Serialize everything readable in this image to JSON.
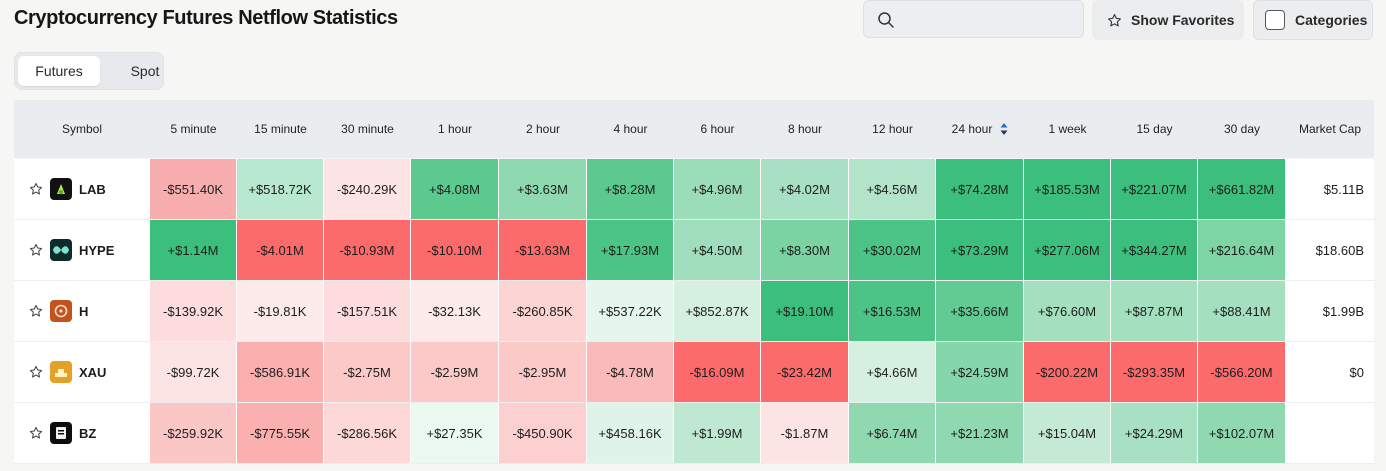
{
  "header": {
    "title": "Cryptocurrency Futures Netflow Statistics",
    "search_placeholder": "",
    "show_favorites_label": "Show Favorites",
    "categories_label": "Categories"
  },
  "tabs": {
    "futures": "Futures",
    "spot": "Spot",
    "active": "Futures"
  },
  "table": {
    "columns": [
      "Symbol",
      "5 minute",
      "15 minute",
      "30 minute",
      "1 hour",
      "2 hour",
      "4 hour",
      "6 hour",
      "8 hour",
      "12 hour",
      "24 hour",
      "1 week",
      "15 day",
      "30 day",
      "Market Cap"
    ],
    "sorted_column": "24 hour",
    "rows": [
      {
        "symbol": "LAB",
        "icon": "lab-coin-icon",
        "market_cap": "$5.11B",
        "values": [
          "-$551.40K",
          "+$518.72K",
          "-$240.29K",
          "+$4.08M",
          "+$3.63M",
          "+$8.28M",
          "+$4.96M",
          "+$4.02M",
          "+$4.56M",
          "+$74.28M",
          "+$185.53M",
          "+$221.07M",
          "+$661.82M"
        ],
        "colors": [
          "#f8aeae",
          "#b8e8cf",
          "#fde4e4",
          "#5cc98f",
          "#8ed9b0",
          "#5cc98f",
          "#9bdcb9",
          "#a7e0c2",
          "#b3e4c9",
          "#3cbf7c",
          "#3cbf7c",
          "#3cbf7c",
          "#3cbf7c"
        ]
      },
      {
        "symbol": "HYPE",
        "icon": "hype-coin-icon",
        "market_cap": "$18.60B",
        "values": [
          "+$1.14M",
          "-$4.01M",
          "-$10.93M",
          "-$10.10M",
          "-$13.63M",
          "+$17.93M",
          "+$4.50M",
          "+$8.30M",
          "+$30.02M",
          "+$73.29M",
          "+$277.06M",
          "+$344.27M",
          "+$216.64M"
        ],
        "colors": [
          "#3cbf7c",
          "#fb6b6b",
          "#fb6b6b",
          "#fb6b6b",
          "#fb6b6b",
          "#4cc486",
          "#a0ddbc",
          "#7bd2a3",
          "#4cc486",
          "#3cbf7c",
          "#3cbf7c",
          "#3cbf7c",
          "#7dd4a5"
        ]
      },
      {
        "symbol": "H",
        "icon": "h-coin-icon",
        "market_cap": "$1.99B",
        "values": [
          "-$139.92K",
          "-$19.81K",
          "-$157.51K",
          "-$32.13K",
          "-$260.85K",
          "+$537.22K",
          "+$852.87K",
          "+$19.10M",
          "+$16.53M",
          "+$35.66M",
          "+$76.60M",
          "+$87.87M",
          "+$88.41M"
        ],
        "colors": [
          "#fcdcdc",
          "#fdeaea",
          "#fcdcdc",
          "#fdeaea",
          "#fcd4d4",
          "#e5f6ec",
          "#d5f0e1",
          "#3cbf7c",
          "#4cc486",
          "#62cb94",
          "#a4dfbf",
          "#a4dfbf",
          "#a4dfbf"
        ]
      },
      {
        "symbol": "XAU",
        "icon": "xau-coin-icon",
        "market_cap": "$0",
        "values": [
          "-$99.72K",
          "-$586.91K",
          "-$2.75M",
          "-$2.59M",
          "-$2.95M",
          "-$4.78M",
          "-$16.09M",
          "-$23.42M",
          "+$4.66M",
          "+$24.59M",
          "-$200.22M",
          "-$293.35M",
          "-$566.20M"
        ],
        "colors": [
          "#fde4e4",
          "#fbb0b0",
          "#fcc9c9",
          "#fcc9c9",
          "#fcc9c9",
          "#fbbaba",
          "#fb6b6b",
          "#fb6b6b",
          "#d5f0e1",
          "#86d6ab",
          "#fb6b6b",
          "#fb6b6b",
          "#fb6b6b"
        ]
      },
      {
        "symbol": "BZ",
        "icon": "bz-coin-icon",
        "market_cap": "",
        "values": [
          "-$259.92K",
          "-$775.55K",
          "-$286.56K",
          "+$27.35K",
          "-$450.90K",
          "+$458.16K",
          "+$1.99M",
          "-$1.87M",
          "+$6.74M",
          "+$21.23M",
          "+$15.04M",
          "+$24.29M",
          "+$102.07M"
        ],
        "colors": [
          "#fbc6c6",
          "#fbb0b0",
          "#fcd8d8",
          "#eaf8f0",
          "#fcd0d0",
          "#dff3e8",
          "#bfe8d1",
          "#fde4e4",
          "#8fd8b0",
          "#8fd8b0",
          "#c4ead5",
          "#a7e0c2",
          "#8fd8b0"
        ]
      }
    ]
  }
}
